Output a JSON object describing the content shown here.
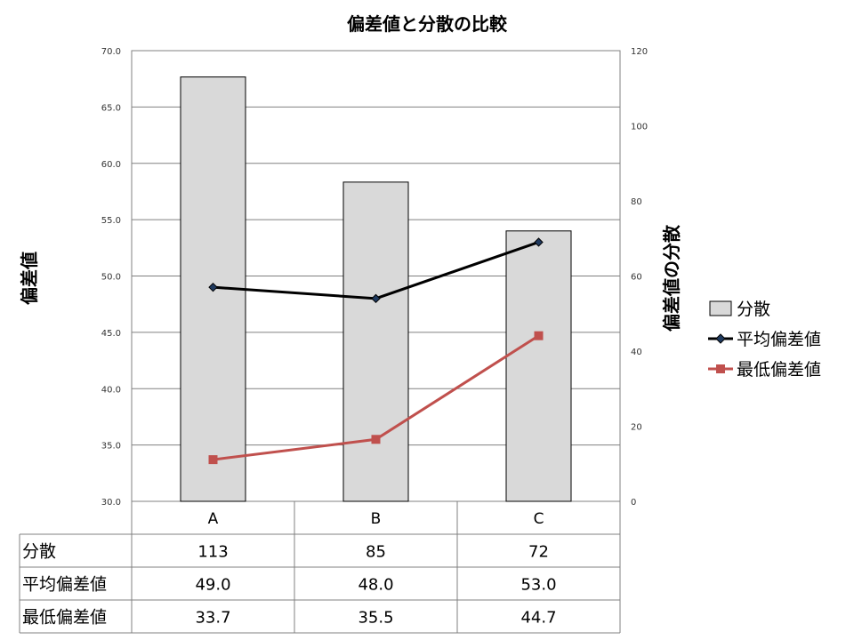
{
  "chart_data": {
    "type": "bar",
    "title": "偏差値と分散の比較",
    "categories": [
      "A",
      "B",
      "C"
    ],
    "y_left": {
      "label": "偏差値",
      "range": [
        30.0,
        70.0
      ],
      "ticks": [
        "70.0",
        "65.0",
        "60.0",
        "55.0",
        "50.0",
        "45.0",
        "40.0",
        "35.0",
        "30.0"
      ]
    },
    "y_right": {
      "label": "偏差値の分散",
      "range": [
        0,
        120
      ],
      "ticks": [
        "120",
        "100",
        "80",
        "60",
        "40",
        "20",
        "0"
      ]
    },
    "series": [
      {
        "name": "分散",
        "type": "bar",
        "axis": "right",
        "values": [
          113,
          85,
          72
        ],
        "display": [
          "113",
          "85",
          "72"
        ],
        "color": "#d9d9d9"
      },
      {
        "name": "平均偏差値",
        "type": "line",
        "axis": "left",
        "values": [
          49.0,
          48.0,
          53.0
        ],
        "display": [
          "49.0",
          "48.0",
          "53.0"
        ],
        "color": "#000000",
        "marker": "diamond"
      },
      {
        "name": "最低偏差値",
        "type": "line",
        "axis": "left",
        "values": [
          33.7,
          35.5,
          44.7
        ],
        "display": [
          "33.7",
          "35.5",
          "44.7"
        ],
        "color": "#c0504d",
        "marker": "square"
      }
    ],
    "grid": true,
    "legend": "right",
    "data_table": true
  }
}
